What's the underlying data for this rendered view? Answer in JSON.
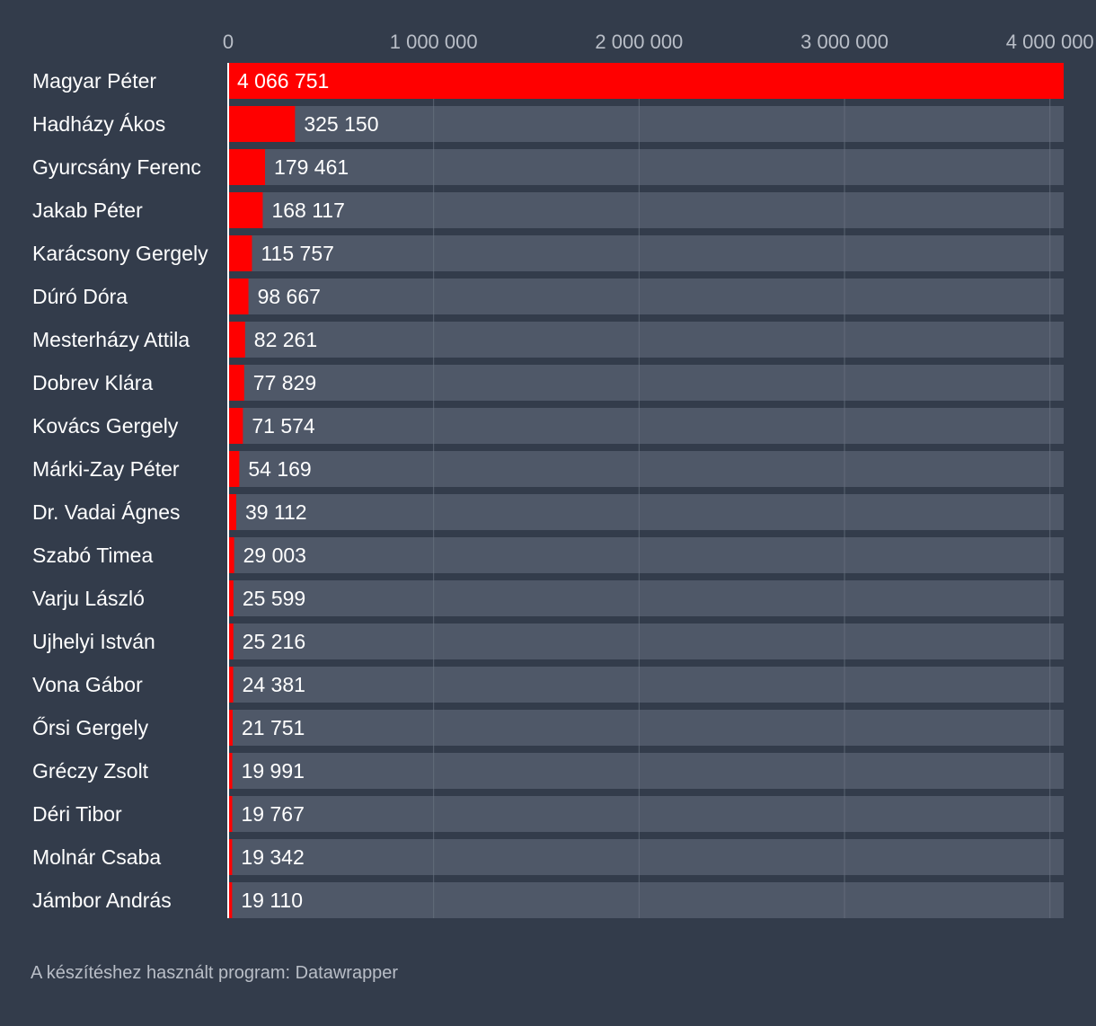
{
  "chart_data": {
    "type": "bar",
    "orientation": "horizontal",
    "title": "",
    "xlabel": "",
    "ylabel": "",
    "xlim": [
      0,
      4066751
    ],
    "x_ticks": [
      0,
      1000000,
      2000000,
      3000000,
      4000000
    ],
    "x_tick_labels": [
      "0",
      "1 000 000",
      "2 000 000",
      "3 000 000",
      "4 000 000"
    ],
    "grid": true,
    "categories": [
      "Magyar Péter",
      "Hadházy Ákos",
      "Gyurcsány Ferenc",
      "Jakab Péter",
      "Karácsony Gergely",
      "Dúró Dóra",
      "Mesterházy Attila",
      "Dobrev Klára",
      "Kovács Gergely",
      "Márki-Zay Péter",
      "Dr. Vadai Ágnes",
      "Szabó Timea",
      "Varju László",
      "Ujhelyi István",
      "Vona Gábor",
      "Őrsi Gergely",
      "Gréczy Zsolt",
      "Déri Tibor",
      "Molnár Csaba",
      "Jámbor András"
    ],
    "values": [
      4066751,
      325150,
      179461,
      168117,
      115757,
      98667,
      82261,
      77829,
      71574,
      54169,
      39112,
      29003,
      25599,
      25216,
      24381,
      21751,
      19991,
      19767,
      19342,
      19110
    ],
    "value_labels": [
      "4 066 751",
      "325 150",
      "179 461",
      "168 117",
      "115 757",
      "98 667",
      "82 261",
      "77 829",
      "71 574",
      "54 169",
      "39 112",
      "29 003",
      "25 599",
      "25 216",
      "24 381",
      "21 751",
      "19 991",
      "19 767",
      "19 342",
      "19 110"
    ],
    "colors": {
      "bar": "#ff0000",
      "track": "#4f5868",
      "background": "#333c4b",
      "gridline": "#6b7482",
      "baseline": "#ffffff",
      "text": "#ffffff",
      "muted_text": "#b9bec7"
    }
  },
  "footer": {
    "note": "A készítéshez használt program: Datawrapper"
  }
}
